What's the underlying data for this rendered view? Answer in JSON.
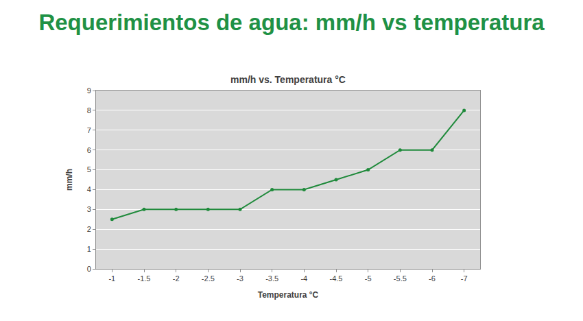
{
  "chart_data": {
    "type": "line",
    "title": "Requerimientos de agua: mm/h vs temperatura",
    "subtitle": "mm/h vs. Temperatura °C",
    "x_label": "Temperatura °C",
    "y_label": "mm/h",
    "categories": [
      "-1",
      "-1.5",
      "-2",
      "-2.5",
      "-3",
      "-3.5",
      "-4",
      "-4.5",
      "-5",
      "-5.5",
      "-6",
      "-7"
    ],
    "values": [
      2.5,
      3,
      3,
      3,
      3,
      4,
      4,
      4.5,
      5,
      6,
      6,
      8
    ],
    "color": "#1f8a3b",
    "marker": "circle",
    "line_style": "solid",
    "ylim": [
      0,
      9
    ],
    "yticks": [
      0,
      1,
      2,
      3,
      4,
      5,
      6,
      7,
      8,
      9
    ],
    "grid": true
  }
}
